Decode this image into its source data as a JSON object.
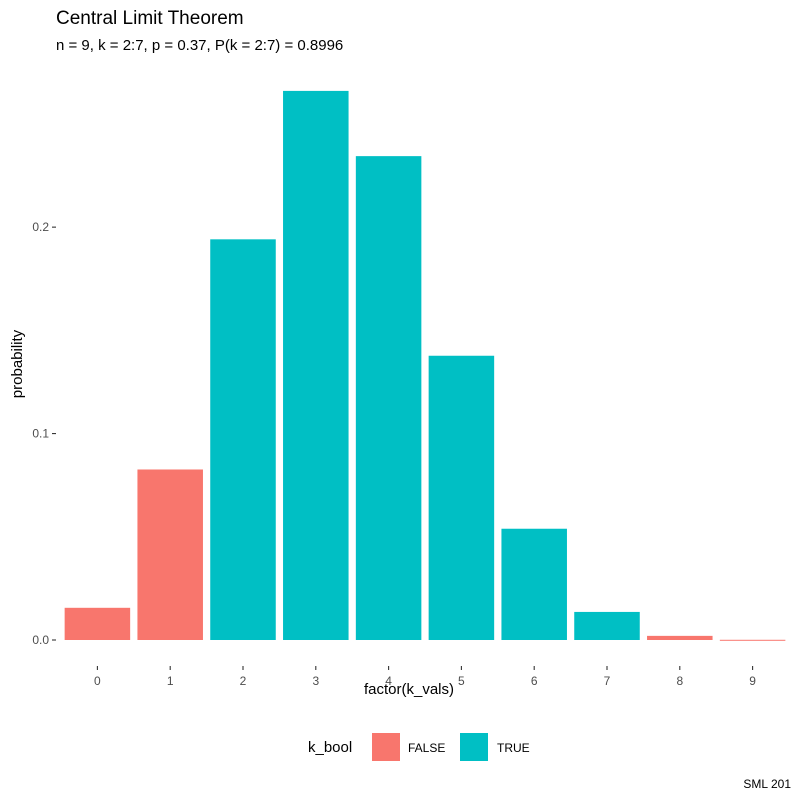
{
  "chart_data": {
    "type": "bar",
    "title": "Central Limit Theorem",
    "subtitle": "n = 9, k = 2:7, p = 0.37, P(k = 2:7) = 0.8996",
    "xlabel": "factor(k_vals)",
    "ylabel": "probability",
    "caption": "SML 201",
    "categories": [
      "0",
      "1",
      "2",
      "3",
      "4",
      "5",
      "6",
      "7",
      "8",
      "9"
    ],
    "values": [
      0.0156,
      0.0826,
      0.1941,
      0.266,
      0.2344,
      0.1377,
      0.0539,
      0.0136,
      0.002,
      0.0001
    ],
    "groups": [
      "FALSE",
      "FALSE",
      "TRUE",
      "TRUE",
      "TRUE",
      "TRUE",
      "TRUE",
      "TRUE",
      "FALSE",
      "FALSE"
    ],
    "ylim": [
      0,
      0.28
    ],
    "yticks": [
      0.0,
      0.1,
      0.2
    ],
    "ytick_labels": [
      "0.0",
      "0.1",
      "0.2"
    ],
    "grid": false,
    "legend": {
      "title": "k_bool",
      "position": "bottom",
      "entries": [
        {
          "label": "FALSE",
          "color": "#F8766D"
        },
        {
          "label": "TRUE",
          "color": "#00BFC4"
        }
      ]
    }
  }
}
